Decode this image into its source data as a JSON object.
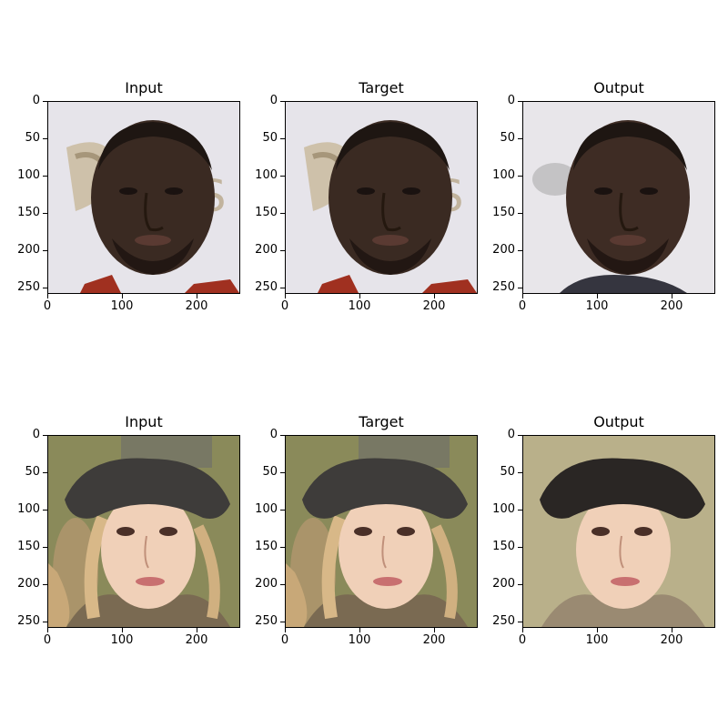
{
  "figure": {
    "rows": [
      {
        "panels": [
          {
            "title": "Input",
            "subject": "man"
          },
          {
            "title": "Target",
            "subject": "man"
          },
          {
            "title": "Output",
            "subject": "man-output"
          }
        ]
      },
      {
        "panels": [
          {
            "title": "Input",
            "subject": "woman"
          },
          {
            "title": "Target",
            "subject": "woman"
          },
          {
            "title": "Output",
            "subject": "woman-output"
          }
        ]
      }
    ],
    "y_ticks": [
      "0",
      "50",
      "100",
      "150",
      "200",
      "250"
    ],
    "x_ticks": [
      "0",
      "100",
      "200"
    ]
  }
}
